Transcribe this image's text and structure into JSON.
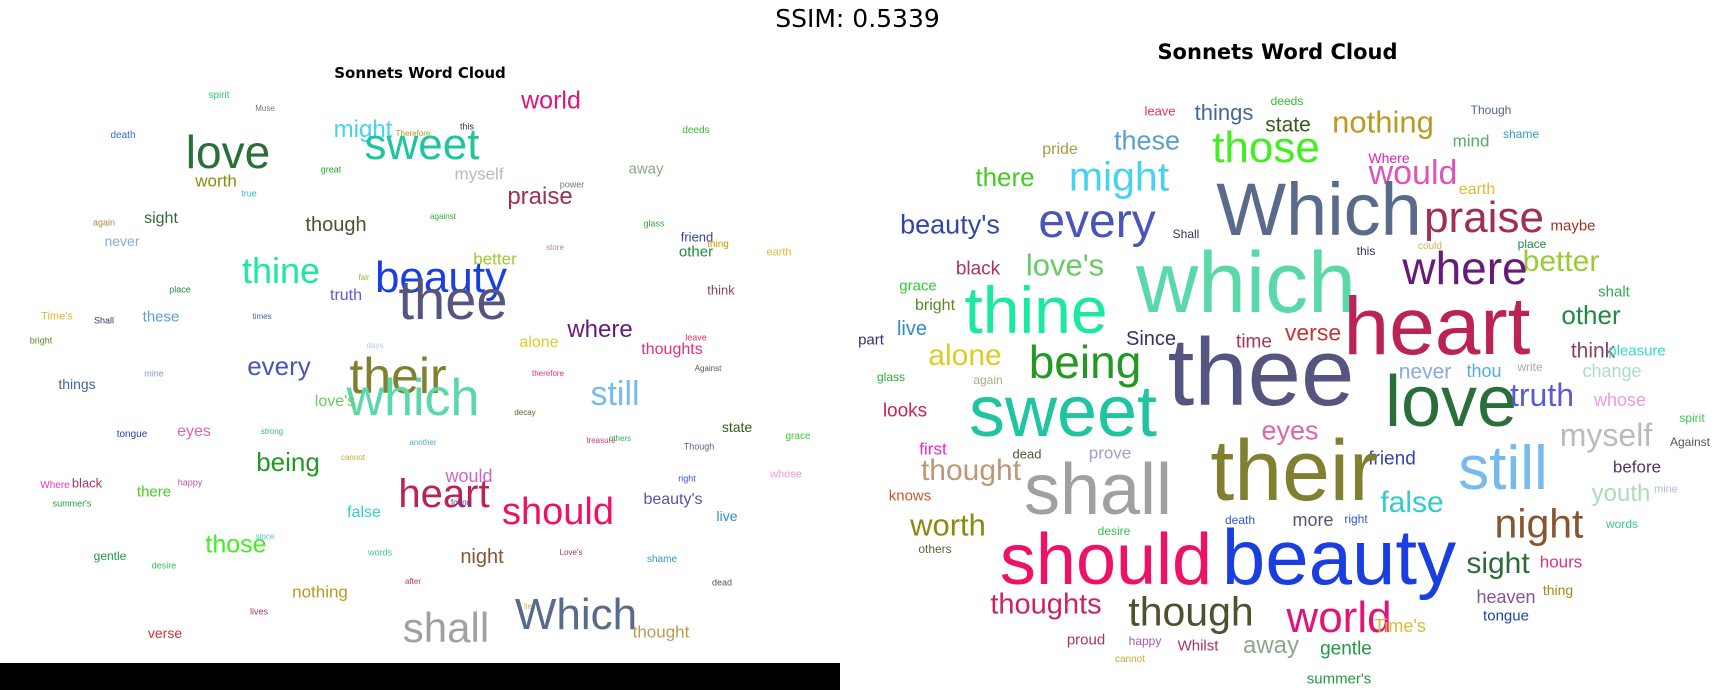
{
  "header": {
    "ssim_label": "SSIM: 0.5339"
  },
  "left": {
    "title": "Sonnets Word Cloud",
    "words": [
      [
        "spirit",
        219,
        96,
        10,
        "#2ecc71"
      ],
      [
        "Muse",
        265,
        109,
        8,
        "#777777"
      ],
      [
        "world",
        551,
        101,
        25,
        "#e0157a"
      ],
      [
        "death",
        123,
        136,
        10,
        "#2f6fd8"
      ],
      [
        "might",
        363,
        130,
        24,
        "#48d1f0"
      ],
      [
        "Therefore",
        413,
        134,
        8,
        "#a0a020"
      ],
      [
        "this",
        467,
        127,
        9,
        "#333333"
      ],
      [
        "sweet",
        422,
        145,
        44,
        "#1fc4a0"
      ],
      [
        "deeds",
        696,
        131,
        10,
        "#33bb33"
      ],
      [
        "love",
        228,
        152,
        46,
        "#2a6e3a"
      ],
      [
        "worth",
        216,
        181,
        17,
        "#8a8a10"
      ],
      [
        "great",
        331,
        170,
        9,
        "#22aa22"
      ],
      [
        "myself",
        479,
        174,
        17,
        "#bbbbbb"
      ],
      [
        "away",
        646,
        169,
        15,
        "#88aa88"
      ],
      [
        "power",
        572,
        185,
        9,
        "#777777"
      ],
      [
        "praise",
        540,
        197,
        24,
        "#a03050"
      ],
      [
        "true",
        249,
        194,
        9,
        "#3bb0d0"
      ],
      [
        "again",
        104,
        223,
        9,
        "#aa8844"
      ],
      [
        "sight",
        161,
        219,
        16,
        "#2e6a3a"
      ],
      [
        "though",
        336,
        225,
        20,
        "#505030"
      ],
      [
        "against",
        443,
        217,
        8,
        "#33aa33"
      ],
      [
        "glass",
        654,
        224,
        9,
        "#33aa33"
      ],
      [
        "friend",
        697,
        237,
        13,
        "#3344aa"
      ],
      [
        "thing",
        718,
        245,
        10,
        "#cc9900"
      ],
      [
        "never",
        122,
        241,
        14,
        "#88aadd"
      ],
      [
        "store",
        555,
        248,
        8,
        "#aa88aa"
      ],
      [
        "other",
        696,
        252,
        15,
        "#228844"
      ],
      [
        "earth",
        779,
        253,
        11,
        "#ddbb33"
      ],
      [
        "better",
        495,
        259,
        17,
        "#99cc33"
      ],
      [
        "thine",
        281,
        271,
        36,
        "#1de8a0"
      ],
      [
        "beauty",
        441,
        278,
        44,
        "#1a3fe0"
      ],
      [
        "thee",
        453,
        300,
        56,
        "#555580"
      ],
      [
        "truth",
        346,
        296,
        16,
        "#5b5bd6"
      ],
      [
        "fair",
        364,
        278,
        8,
        "#99bb33"
      ],
      [
        "place",
        180,
        290,
        9,
        "#228844"
      ],
      [
        "think",
        721,
        290,
        13,
        "#884466"
      ],
      [
        "Time's",
        57,
        317,
        11,
        "#ddbb33"
      ],
      [
        "Shall",
        104,
        321,
        9,
        "#333366"
      ],
      [
        "these",
        161,
        317,
        15,
        "#5aa0d0"
      ],
      [
        "times",
        262,
        317,
        8,
        "#4466aa"
      ],
      [
        "bright",
        41,
        341,
        9,
        "#558822"
      ],
      [
        "where",
        600,
        330,
        24,
        "#661b7a"
      ],
      [
        "days",
        375,
        346,
        8,
        "#aaccee"
      ],
      [
        "leave",
        696,
        338,
        9,
        "#dd3366"
      ],
      [
        "alone",
        539,
        343,
        16,
        "#ddcc22"
      ],
      [
        "thoughts",
        672,
        350,
        16,
        "#dd3377"
      ],
      [
        "every",
        279,
        366,
        26,
        "#4a55b8"
      ],
      [
        "their",
        398,
        376,
        50,
        "#808030"
      ],
      [
        "which",
        413,
        398,
        52,
        "#5ad8a8"
      ],
      [
        "still",
        615,
        394,
        34,
        "#77bbee"
      ],
      [
        "mine",
        154,
        374,
        9,
        "#8899cc"
      ],
      [
        "therefore",
        548,
        374,
        8,
        "#dd3377"
      ],
      [
        "Against",
        708,
        369,
        8,
        "#555555"
      ],
      [
        "things",
        77,
        384,
        14,
        "#446699"
      ],
      [
        "love's",
        335,
        402,
        16,
        "#66cc66"
      ],
      [
        "decay",
        525,
        413,
        8,
        "#556633"
      ],
      [
        "state",
        737,
        427,
        14,
        "#3a5a1a"
      ],
      [
        "eyes",
        194,
        432,
        16,
        "#dd66aa"
      ],
      [
        "tongue",
        132,
        435,
        10,
        "#2244aa"
      ],
      [
        "strong",
        272,
        432,
        8,
        "#33bb66"
      ],
      [
        "another",
        423,
        443,
        8,
        "#55aacc"
      ],
      [
        "treasure",
        601,
        441,
        8,
        "#dd3377"
      ],
      [
        "others",
        620,
        439,
        8,
        "#33aa55"
      ],
      [
        "Though",
        699,
        447,
        9,
        "#556688"
      ],
      [
        "grace",
        798,
        437,
        10,
        "#33cc33"
      ],
      [
        "being",
        288,
        462,
        26,
        "#229922"
      ],
      [
        "cannot",
        353,
        458,
        8,
        "#ccaa33"
      ],
      [
        "would",
        469,
        476,
        18,
        "#cc66cc"
      ],
      [
        "heart",
        444,
        494,
        40,
        "#bb2255"
      ],
      [
        "should",
        558,
        512,
        38,
        "#ee1166"
      ],
      [
        "right",
        687,
        479,
        9,
        "#3355dd"
      ],
      [
        "whose",
        786,
        475,
        11,
        "#ee99dd"
      ],
      [
        "Where",
        55,
        486,
        10,
        "#ee33bb"
      ],
      [
        "black",
        87,
        483,
        13,
        "#aa3366"
      ],
      [
        "happy",
        190,
        483,
        9,
        "#aa55aa"
      ],
      [
        "there",
        154,
        492,
        15,
        "#44cc22"
      ],
      [
        "summer's",
        72,
        504,
        9,
        "#229944"
      ],
      [
        "false",
        364,
        513,
        16,
        "#33cccc"
      ],
      [
        "found",
        461,
        503,
        8,
        "#4444aa"
      ],
      [
        "beauty's",
        673,
        500,
        16,
        "#5555aa"
      ],
      [
        "live",
        727,
        516,
        14,
        "#3388cc"
      ],
      [
        "since",
        265,
        537,
        8,
        "#55bbee"
      ],
      [
        "those",
        236,
        545,
        25,
        "#44ee22"
      ],
      [
        "words",
        380,
        553,
        9,
        "#33cc88"
      ],
      [
        "Love's",
        571,
        553,
        8,
        "#aa3366"
      ],
      [
        "gentle",
        110,
        556,
        12,
        "#229944"
      ],
      [
        "desire",
        164,
        566,
        9,
        "#33bb55"
      ],
      [
        "night",
        482,
        557,
        20,
        "#885533"
      ],
      [
        "shame",
        662,
        560,
        10,
        "#3399cc"
      ],
      [
        "after",
        413,
        582,
        8,
        "#cc3355"
      ],
      [
        "dead",
        722,
        583,
        9,
        "#555555"
      ],
      [
        "nothing",
        320,
        592,
        17,
        "#bb9922"
      ],
      [
        "lives",
        259,
        612,
        9,
        "#aa3366"
      ],
      [
        "lie",
        528,
        607,
        8,
        "#ddaa55"
      ],
      [
        "Which",
        576,
        615,
        44,
        "#5a6a8a"
      ],
      [
        "shall",
        446,
        628,
        42,
        "#a0a0a0"
      ],
      [
        "thought",
        661,
        632,
        17,
        "#bb9955"
      ],
      [
        "verse",
        165,
        633,
        14,
        "#cc3333"
      ]
    ]
  },
  "right": {
    "title": "Sonnets Word Cloud",
    "words": [
      [
        "deeds",
        1287,
        101,
        12,
        "#33bb33"
      ],
      [
        "Though",
        1491,
        110,
        12,
        "#556688"
      ],
      [
        "leave",
        1160,
        111,
        13,
        "#dd3366"
      ],
      [
        "things",
        1224,
        113,
        22,
        "#446699"
      ],
      [
        "state",
        1288,
        125,
        21,
        "#3a5a1a"
      ],
      [
        "nothing",
        1383,
        122,
        31,
        "#bb9922"
      ],
      [
        "shame",
        1521,
        134,
        12,
        "#3399cc"
      ],
      [
        "mind",
        1471,
        141,
        17,
        "#55aa66"
      ],
      [
        "these",
        1147,
        141,
        27,
        "#5aa0d0"
      ],
      [
        "those",
        1266,
        148,
        44,
        "#44ee22"
      ],
      [
        "pride",
        1060,
        150,
        16,
        "#aa9944"
      ],
      [
        "Where",
        1389,
        158,
        14,
        "#dd22bb"
      ],
      [
        "would",
        1413,
        173,
        34,
        "#dd55bb"
      ],
      [
        "there",
        1005,
        177,
        26,
        "#44cc22"
      ],
      [
        "might",
        1119,
        177,
        41,
        "#48d1f0"
      ],
      [
        "earth",
        1477,
        190,
        16,
        "#ddbb33"
      ],
      [
        "Which",
        1319,
        210,
        74,
        "#5a6a8a"
      ],
      [
        "praise",
        1484,
        218,
        44,
        "#a03050"
      ],
      [
        "maybe",
        1573,
        226,
        15,
        "#993322"
      ],
      [
        "beauty's",
        950,
        225,
        27,
        "#3344aa"
      ],
      [
        "every",
        1097,
        222,
        48,
        "#4a55b8"
      ],
      [
        "Shall",
        1186,
        234,
        12,
        "#333366"
      ],
      [
        "could",
        1430,
        247,
        10,
        "#ddaa55"
      ],
      [
        "place",
        1532,
        244,
        12,
        "#228844"
      ],
      [
        "this",
        1366,
        251,
        12,
        "#333366"
      ],
      [
        "better",
        1561,
        262,
        30,
        "#99cc33"
      ],
      [
        "black",
        978,
        269,
        19,
        "#aa3366"
      ],
      [
        "love's",
        1065,
        265,
        31,
        "#66cc66"
      ],
      [
        "which",
        1246,
        283,
        86,
        "#5ad8a8"
      ],
      [
        "where",
        1465,
        268,
        46,
        "#661b7a"
      ],
      [
        "grace",
        918,
        286,
        15,
        "#33cc33"
      ],
      [
        "shalt",
        1614,
        292,
        15,
        "#33aa55"
      ],
      [
        "bright",
        935,
        306,
        16,
        "#558822"
      ],
      [
        "thine",
        1036,
        310,
        66,
        "#1de8a0"
      ],
      [
        "heart",
        1437,
        327,
        82,
        "#bb2255"
      ],
      [
        "other",
        1591,
        315,
        26,
        "#228844"
      ],
      [
        "live",
        912,
        329,
        20,
        "#3388cc"
      ],
      [
        "part",
        871,
        340,
        15,
        "#333366"
      ],
      [
        "Since",
        1151,
        339,
        20,
        "#333366"
      ],
      [
        "time",
        1254,
        342,
        19,
        "#aa3355"
      ],
      [
        "verse",
        1313,
        333,
        23,
        "#cc3333"
      ],
      [
        "think",
        1593,
        351,
        21,
        "#884466"
      ],
      [
        "pleasure",
        1637,
        351,
        15,
        "#33ddbb"
      ],
      [
        "alone",
        965,
        356,
        30,
        "#ddcc22"
      ],
      [
        "being",
        1085,
        362,
        46,
        "#229922"
      ],
      [
        "never",
        1425,
        372,
        21,
        "#88aadd"
      ],
      [
        "thou",
        1484,
        371,
        18,
        "#55aadd"
      ],
      [
        "write",
        1530,
        367,
        12,
        "#aaaaaa"
      ],
      [
        "change",
        1612,
        371,
        18,
        "#aaddcc"
      ],
      [
        "glass",
        891,
        377,
        12,
        "#33aa33"
      ],
      [
        "again",
        988,
        380,
        12,
        "#aaaa88"
      ],
      [
        "thee",
        1261,
        373,
        96,
        "#555580"
      ],
      [
        "love",
        1451,
        402,
        72,
        "#2a6e3a"
      ],
      [
        "truth",
        1542,
        395,
        32,
        "#5b5bd6"
      ],
      [
        "whose",
        1620,
        400,
        18,
        "#ee99dd"
      ],
      [
        "looks",
        905,
        411,
        19,
        "#cc2255"
      ],
      [
        "sweet",
        1063,
        412,
        72,
        "#1fc4a0"
      ],
      [
        "spirit",
        1692,
        418,
        12,
        "#33cc55"
      ],
      [
        "eyes",
        1290,
        431,
        27,
        "#dd66aa"
      ],
      [
        "myself",
        1606,
        435,
        32,
        "#bbbbbb"
      ],
      [
        "Against",
        1690,
        442,
        12,
        "#555555"
      ],
      [
        "first",
        933,
        449,
        17,
        "#ee22dd"
      ],
      [
        "dead",
        1027,
        454,
        13,
        "#555533"
      ],
      [
        "prove",
        1110,
        453,
        17,
        "#aa99cc"
      ],
      [
        "friend",
        1392,
        459,
        19,
        "#3344aa"
      ],
      [
        "still",
        1503,
        469,
        62,
        "#77bbee"
      ],
      [
        "their",
        1294,
        471,
        86,
        "#808030"
      ],
      [
        "before",
        1637,
        467,
        17,
        "#553366"
      ],
      [
        "shall",
        1098,
        490,
        72,
        "#a0a0a0"
      ],
      [
        "thought",
        971,
        471,
        30,
        "#bb9977"
      ],
      [
        "knows",
        910,
        496,
        15,
        "#cc5533"
      ],
      [
        "mine",
        1666,
        490,
        11,
        "#aabbdd"
      ],
      [
        "youth",
        1621,
        494,
        24,
        "#aaddbb"
      ],
      [
        "false",
        1412,
        503,
        30,
        "#33cccc"
      ],
      [
        "death",
        1240,
        520,
        12,
        "#3355cc"
      ],
      [
        "more",
        1313,
        520,
        18,
        "#555577"
      ],
      [
        "right",
        1356,
        519,
        12,
        "#3355cc"
      ],
      [
        "night",
        1539,
        524,
        41,
        "#885533"
      ],
      [
        "words",
        1622,
        524,
        12,
        "#33cc88"
      ],
      [
        "worth",
        948,
        525,
        31,
        "#8a8a10"
      ],
      [
        "desire",
        1114,
        531,
        12,
        "#33bb55"
      ],
      [
        "others",
        935,
        549,
        12,
        "#556633"
      ],
      [
        "should",
        1106,
        560,
        72,
        "#ee1166"
      ],
      [
        "beauty",
        1339,
        557,
        78,
        "#1a3fe0"
      ],
      [
        "sight",
        1498,
        564,
        30,
        "#2e6a3a"
      ],
      [
        "hours",
        1561,
        562,
        17,
        "#dd3377"
      ],
      [
        "thing",
        1558,
        590,
        14,
        "#aa8811"
      ],
      [
        "heaven",
        1506,
        597,
        18,
        "#885599"
      ],
      [
        "thoughts",
        1046,
        605,
        29,
        "#cc2266"
      ],
      [
        "though",
        1191,
        612,
        41,
        "#505030"
      ],
      [
        "world",
        1339,
        618,
        44,
        "#e0157a"
      ],
      [
        "Time's",
        1400,
        626,
        18,
        "#ddbb33"
      ],
      [
        "tongue",
        1506,
        616,
        15,
        "#2244aa"
      ],
      [
        "proud",
        1086,
        640,
        15,
        "#aa3366"
      ],
      [
        "happy",
        1145,
        641,
        12,
        "#aa55aa"
      ],
      [
        "Whilst",
        1198,
        646,
        15,
        "#aa3366"
      ],
      [
        "away",
        1271,
        646,
        24,
        "#88aa88"
      ],
      [
        "gentle",
        1346,
        649,
        19,
        "#229944"
      ],
      [
        "cannot",
        1130,
        660,
        10,
        "#ccaa33"
      ],
      [
        "summer's",
        1339,
        679,
        15,
        "#229944"
      ]
    ]
  }
}
